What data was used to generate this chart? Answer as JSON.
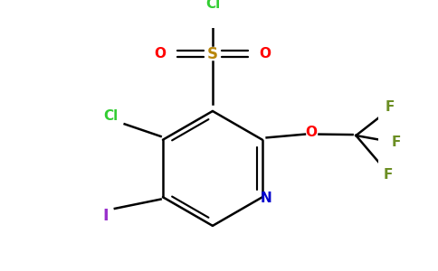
{
  "background_color": "#ffffff",
  "atom_colors": {
    "C": "#000000",
    "N": "#0000cd",
    "O": "#ff0000",
    "S": "#b8860b",
    "Cl_green": "#32cd32",
    "F": "#6b8e23",
    "I": "#9932cc"
  },
  "figsize": [
    4.84,
    3.0
  ],
  "dpi": 100,
  "lw": 1.8,
  "fs": 11
}
